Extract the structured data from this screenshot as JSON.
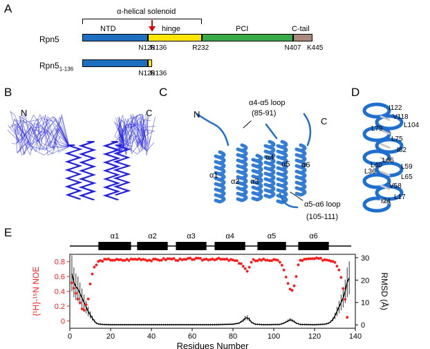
{
  "panels": {
    "A": "A",
    "B": "B",
    "C": "C",
    "D": "D",
    "E": "E"
  },
  "colors": {
    "ntd": "#1f6fc0",
    "hinge": "#ffe500",
    "pci": "#3aa948",
    "ctail": "#a88a7c",
    "arrow": "#e60000",
    "noe": "#ff1a1a",
    "rmsd": "#000000",
    "helix": "#1e6fd0",
    "ensemble": "#2222e0"
  },
  "panel_a": {
    "solenoid_label": "α-helical solenoid",
    "rpn5_label": "Rpn5",
    "domains": [
      {
        "name": "NTD",
        "start": 1,
        "end": 128
      },
      {
        "name": "hinge",
        "start": 128,
        "end": 232
      },
      {
        "name": "PCI",
        "start": 232,
        "end": 407
      },
      {
        "name": "C-tail",
        "start": 407,
        "end": 445
      }
    ],
    "residue_marks": [
      "N128",
      "R136",
      "R232",
      "N407",
      "K445"
    ],
    "construct_label": "Rpn5",
    "construct_sub": "1-136",
    "construct_marks": [
      "N128",
      "R136"
    ]
  },
  "panel_b": {
    "n_label": "N",
    "c_label": "C"
  },
  "panel_c": {
    "n_label": "N",
    "c_label": "C",
    "loop1": "α4-α5 loop",
    "loop1_range": "(85-91)",
    "loop2": "α5-α6 loop",
    "loop2_range": "(105-111)",
    "helices": [
      "α1",
      "α2",
      "α3",
      "α4",
      "α5",
      "α6"
    ]
  },
  "panel_d": {
    "residues": [
      "I122",
      "V118",
      "L104",
      "L79",
      "L75",
      "I62",
      "L66",
      "L40",
      "L59",
      "L36",
      "L65",
      "V58",
      "L17",
      "I24"
    ]
  },
  "panel_e": {
    "helices": [
      {
        "name": "α1",
        "start": 14,
        "end": 30
      },
      {
        "name": "α2",
        "start": 33,
        "end": 48
      },
      {
        "name": "α3",
        "start": 52,
        "end": 67
      },
      {
        "name": "α4",
        "start": 71,
        "end": 86
      },
      {
        "name": "α5",
        "start": 92,
        "end": 106
      },
      {
        "name": "α6",
        "start": 112,
        "end": 127
      }
    ],
    "chart_data": {
      "type": "scatter",
      "xlabel": "Residues Number",
      "ylabel_left": "{¹H}-¹⁵N NOE",
      "ylabel_right": "RMSD (Å)",
      "xlim": [
        0,
        140
      ],
      "ylim_left": [
        -0.1,
        0.9
      ],
      "ylim_right": [
        -1.5,
        31.5
      ],
      "xticks": [
        0,
        20,
        40,
        60,
        80,
        100,
        120,
        140
      ],
      "yticks_left": [
        0,
        0.2,
        0.4,
        0.6,
        0.8
      ],
      "yticks_left_labels": [
        "0",
        "0.2",
        "0.4",
        "0.6",
        "0.8"
      ],
      "yticks_right": [
        0,
        10,
        20,
        30
      ],
      "noe_profile": [
        [
          1,
          0.52
        ],
        [
          2,
          0.45
        ],
        [
          3,
          0.36
        ],
        [
          4,
          0.3
        ],
        [
          5,
          0.24
        ],
        [
          6,
          0.17
        ],
        [
          7,
          0.13
        ],
        [
          8,
          0.22
        ],
        [
          9,
          0.3
        ],
        [
          10,
          0.5
        ],
        [
          11,
          0.62
        ],
        [
          12,
          0.72
        ],
        [
          14,
          0.8
        ],
        [
          16,
          0.82
        ],
        [
          20,
          0.83
        ],
        [
          25,
          0.82
        ],
        [
          30,
          0.83
        ],
        [
          35,
          0.84
        ],
        [
          40,
          0.82
        ],
        [
          45,
          0.83
        ],
        [
          50,
          0.84
        ],
        [
          55,
          0.82
        ],
        [
          60,
          0.84
        ],
        [
          65,
          0.83
        ],
        [
          70,
          0.84
        ],
        [
          75,
          0.83
        ],
        [
          80,
          0.82
        ],
        [
          82,
          0.8
        ],
        [
          84,
          0.78
        ],
        [
          85,
          0.74
        ],
        [
          86,
          0.7
        ],
        [
          87,
          0.67
        ],
        [
          88,
          0.72
        ],
        [
          89,
          0.78
        ],
        [
          90,
          0.82
        ],
        [
          95,
          0.83
        ],
        [
          100,
          0.82
        ],
        [
          103,
          0.8
        ],
        [
          104,
          0.76
        ],
        [
          105,
          0.68
        ],
        [
          106,
          0.58
        ],
        [
          107,
          0.5
        ],
        [
          108,
          0.44
        ],
        [
          109,
          0.42
        ],
        [
          110,
          0.47
        ],
        [
          111,
          0.6
        ],
        [
          112,
          0.75
        ],
        [
          113,
          0.82
        ],
        [
          116,
          0.83
        ],
        [
          120,
          0.84
        ],
        [
          125,
          0.83
        ],
        [
          128,
          0.82
        ],
        [
          130,
          0.8
        ],
        [
          131,
          0.75
        ],
        [
          132,
          0.7
        ],
        [
          133,
          0.6
        ],
        [
          134,
          0.45
        ],
        [
          135,
          0.3
        ],
        [
          136,
          0.05
        ]
      ],
      "rmsd_profile": [
        [
          1,
          23
        ],
        [
          2,
          19
        ],
        [
          3,
          17
        ],
        [
          4,
          16
        ],
        [
          5,
          14
        ],
        [
          6,
          12
        ],
        [
          7,
          10
        ],
        [
          8,
          8
        ],
        [
          9,
          6
        ],
        [
          10,
          4.5
        ],
        [
          11,
          3
        ],
        [
          12,
          1.8
        ],
        [
          13,
          0.8
        ],
        [
          14,
          0.4
        ],
        [
          16,
          0.2
        ],
        [
          20,
          0.1
        ],
        [
          30,
          0.1
        ],
        [
          40,
          0.1
        ],
        [
          50,
          0.1
        ],
        [
          60,
          0.1
        ],
        [
          70,
          0.1
        ],
        [
          80,
          0.3
        ],
        [
          83,
          0.8
        ],
        [
          85,
          2
        ],
        [
          86,
          3
        ],
        [
          87,
          3.2
        ],
        [
          88,
          2.5
        ],
        [
          89,
          1.2
        ],
        [
          91,
          0.3
        ],
        [
          95,
          0.1
        ],
        [
          103,
          0.2
        ],
        [
          105,
          0.8
        ],
        [
          107,
          1.8
        ],
        [
          108,
          2.3
        ],
        [
          109,
          2
        ],
        [
          110,
          1.5
        ],
        [
          111,
          0.8
        ],
        [
          113,
          0.2
        ],
        [
          120,
          0.1
        ],
        [
          125,
          0.3
        ],
        [
          127,
          0.8
        ],
        [
          128,
          1.5
        ],
        [
          129,
          2.5
        ],
        [
          130,
          4
        ],
        [
          131,
          6
        ],
        [
          132,
          8
        ],
        [
          133,
          10
        ],
        [
          134,
          12
        ],
        [
          135,
          15
        ],
        [
          136,
          19
        ],
        [
          137,
          21
        ]
      ]
    }
  }
}
